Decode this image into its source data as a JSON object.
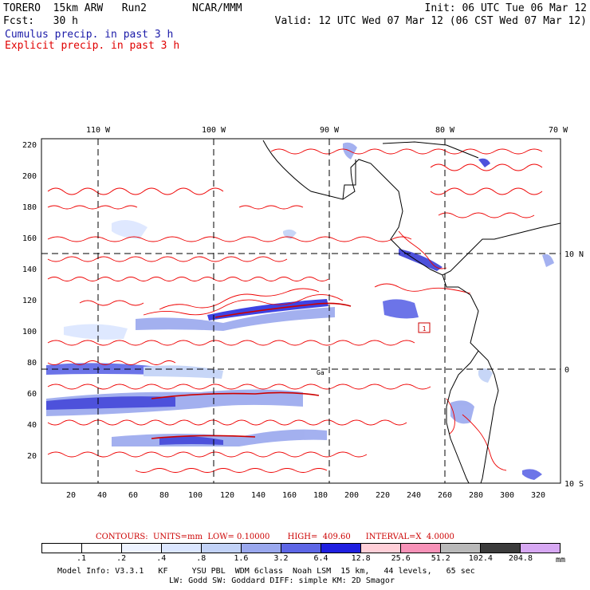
{
  "header": {
    "model": "TORERO  15km ARW   Run2",
    "org": "NCAR/MMM",
    "init": "Init: 06 UTC Tue 06 Mar 12",
    "fcst": "Fcst:   30 h",
    "valid": "Valid: 12 UTC Wed 07 Mar 12 (06 CST Wed 07 Mar 12)",
    "cumulus": "Cumulus precip. in past 3 h",
    "explicit": "Explicit precip. in past 3 h"
  },
  "map": {
    "top_labels": [
      "110 W",
      "100 W",
      "90 W",
      "80 W",
      "70 W"
    ],
    "right_labels": [
      "10 N",
      "0",
      "10 S"
    ],
    "y_ticks": [
      "220",
      "200",
      "180",
      "160",
      "140",
      "120",
      "100",
      "80",
      "60",
      "40",
      "20"
    ],
    "x_ticks": [
      "20",
      "40",
      "60",
      "80",
      "100",
      "120",
      "140",
      "160",
      "180",
      "200",
      "220",
      "240",
      "260",
      "280",
      "300",
      "320"
    ],
    "box_label": "1",
    "island_label": "Ga"
  },
  "contours": {
    "label": "CONTOURS:  UNITS=mm  LOW= 0.10000       HIGH=  409.60      INTERVAL=X  4.0000"
  },
  "colorbar": {
    "labels": [
      ".1",
      ".2",
      ".4",
      ".8",
      "1.6",
      "3.2",
      "6.4",
      "12.8",
      "25.6",
      "51.2",
      "102.4",
      "204.8"
    ],
    "colors": [
      "#ffffff",
      "#ffffff",
      "#eef3ff",
      "#dbe6ff",
      "#c2d2f7",
      "#9aa8ee",
      "#5d66e6",
      "#1f1fe0",
      "#ffcfd8",
      "#f792b8",
      "#b9b9b9",
      "#3c3c3c",
      "#d7a8f3"
    ],
    "unit": "mm"
  },
  "model_info": {
    "line1": "Model Info: V3.3.1   KF     YSU PBL  WDM 6class  Noah LSM  15 km,   44 levels,   65 sec",
    "line2": "LW: Godd SW: Goddard DIFF: simple KM: 2D Smagor"
  }
}
